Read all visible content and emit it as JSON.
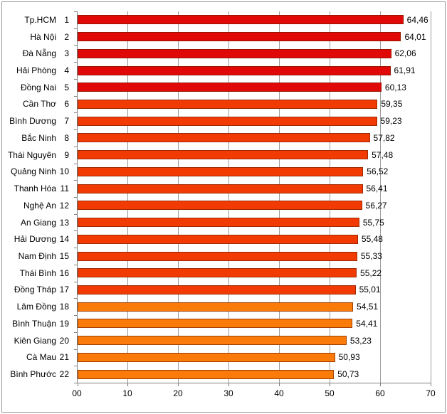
{
  "chart_data": {
    "type": "bar",
    "orientation": "horizontal",
    "title": "",
    "xlabel": "",
    "ylabel": "",
    "xlim": [
      0,
      70
    ],
    "grid": true,
    "legend": "none",
    "decimal_separator": ",",
    "colors": {
      "red": "#e10808",
      "orangered": "#f23b02",
      "orange": "#fa7b0a",
      "gridline": "#9b9b9b",
      "axis": "#808080"
    },
    "x_ticks": [
      "00",
      "10",
      "20",
      "30",
      "40",
      "50",
      "60",
      "70"
    ],
    "items": [
      {
        "rank": "1",
        "name": "Tp.HCM",
        "value": 64.46,
        "label": "64,46",
        "tier": "red"
      },
      {
        "rank": "2",
        "name": "Hà Nội",
        "value": 64.01,
        "label": "64,01",
        "tier": "red"
      },
      {
        "rank": "3",
        "name": "Đà Nẵng",
        "value": 62.06,
        "label": "62,06",
        "tier": "red"
      },
      {
        "rank": "4",
        "name": "Hải Phòng",
        "value": 61.91,
        "label": "61,91",
        "tier": "red"
      },
      {
        "rank": "5",
        "name": "Đồng Nai",
        "value": 60.13,
        "label": "60,13",
        "tier": "red"
      },
      {
        "rank": "6",
        "name": "Cần Thơ",
        "value": 59.35,
        "label": "59,35",
        "tier": "orangered"
      },
      {
        "rank": "7",
        "name": "Bình Dương",
        "value": 59.23,
        "label": "59,23",
        "tier": "orangered"
      },
      {
        "rank": "8",
        "name": "Bắc Ninh",
        "value": 57.82,
        "label": "57,82",
        "tier": "orangered"
      },
      {
        "rank": "9",
        "name": "Thái Nguyên",
        "value": 57.48,
        "label": "57,48",
        "tier": "orangered"
      },
      {
        "rank": "10",
        "name": "Quảng Ninh",
        "value": 56.52,
        "label": "56,52",
        "tier": "orangered"
      },
      {
        "rank": "11",
        "name": "Thanh Hóa",
        "value": 56.41,
        "label": "56,41",
        "tier": "orangered"
      },
      {
        "rank": "12",
        "name": "Nghệ An",
        "value": 56.27,
        "label": "56,27",
        "tier": "orangered"
      },
      {
        "rank": "13",
        "name": "An Giang",
        "value": 55.75,
        "label": "55,75",
        "tier": "orangered"
      },
      {
        "rank": "14",
        "name": "Hải Dương",
        "value": 55.48,
        "label": "55,48",
        "tier": "orangered"
      },
      {
        "rank": "15",
        "name": "Nam Định",
        "value": 55.33,
        "label": "55,33",
        "tier": "orangered"
      },
      {
        "rank": "16",
        "name": "Thái Bình",
        "value": 55.22,
        "label": "55,22",
        "tier": "orangered"
      },
      {
        "rank": "17",
        "name": "Đồng Tháp",
        "value": 55.01,
        "label": "55,01",
        "tier": "orangered"
      },
      {
        "rank": "18",
        "name": "Lâm Đồng",
        "value": 54.51,
        "label": "54,51",
        "tier": "orange"
      },
      {
        "rank": "19",
        "name": "Bình Thuận",
        "value": 54.41,
        "label": "54,41",
        "tier": "orange"
      },
      {
        "rank": "20",
        "name": "Kiên Giang",
        "value": 53.23,
        "label": "53,23",
        "tier": "orange"
      },
      {
        "rank": "21",
        "name": "Cà Mau",
        "value": 50.93,
        "label": "50,93",
        "tier": "orange"
      },
      {
        "rank": "22",
        "name": "Bình Phước",
        "value": 50.73,
        "label": "50,73",
        "tier": "orange"
      }
    ]
  }
}
